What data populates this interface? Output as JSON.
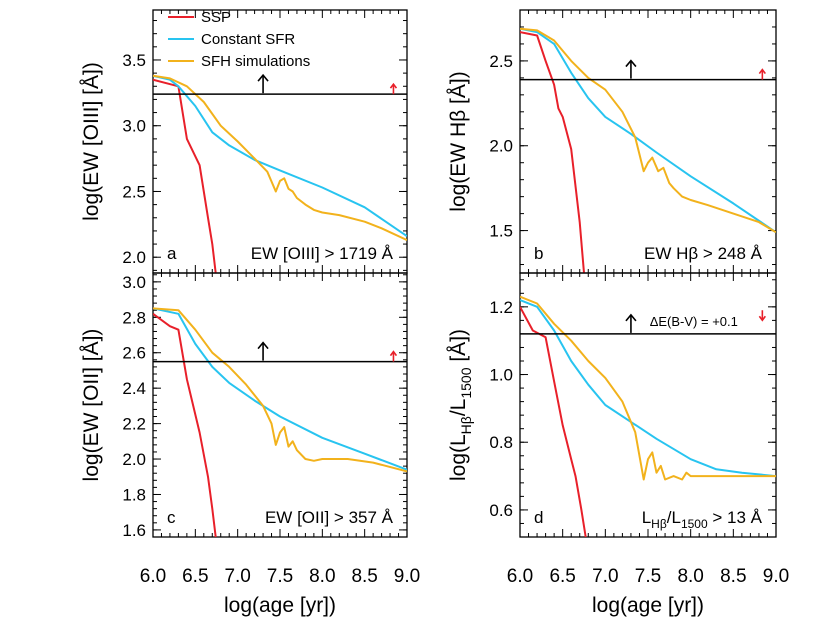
{
  "figure": {
    "legend": [
      {
        "label": "SSP",
        "color": "#e8202a"
      },
      {
        "label": "Constant SFR",
        "color": "#28c4f0"
      },
      {
        "label": "SFH simulations",
        "color": "#f2b21c"
      }
    ],
    "shared_xlabel": "log(age [yr])",
    "shared_xticks": [
      "6.0",
      "6.5",
      "7.0",
      "7.5",
      "8.0",
      "8.5",
      "9.0"
    ]
  },
  "chart_data": [
    {
      "type": "line",
      "panel_letter": "a",
      "ylabel": "log(EW [OIII] [Å])",
      "threshold_label": "EW [OIII] > 1719 Å",
      "threshold": 3.24,
      "xlim": [
        6.0,
        9.0
      ],
      "ylim": [
        1.88,
        3.88
      ],
      "yticks": [
        "2.0",
        "2.5",
        "3.0",
        "3.5"
      ],
      "ytick_values": [
        2.0,
        2.5,
        3.0,
        3.5
      ],
      "arrows": [
        {
          "x": 7.3,
          "y": 3.24,
          "dir": "up",
          "color": "#000000"
        },
        {
          "x": 8.84,
          "y": 3.24,
          "dir": "up",
          "color": "#e8202a"
        }
      ],
      "series": [
        {
          "name": "SSP",
          "color": "#e8202a",
          "x": [
            6.0,
            6.3,
            6.4,
            6.55,
            6.65,
            6.7,
            6.74
          ],
          "y": [
            3.35,
            3.3,
            2.9,
            2.7,
            2.3,
            2.1,
            1.88
          ]
        },
        {
          "name": "Constant SFR",
          "color": "#28c4f0",
          "x": [
            6.0,
            6.2,
            6.3,
            6.5,
            6.7,
            6.9,
            7.2,
            7.5,
            8.0,
            8.5,
            9.0
          ],
          "y": [
            3.38,
            3.35,
            3.3,
            3.15,
            2.95,
            2.85,
            2.74,
            2.66,
            2.53,
            2.38,
            2.16
          ]
        },
        {
          "name": "SFH simulations",
          "color": "#f2b21c",
          "x": [
            6.0,
            6.2,
            6.4,
            6.6,
            6.8,
            7.0,
            7.2,
            7.35,
            7.45,
            7.5,
            7.55,
            7.6,
            7.65,
            7.7,
            7.8,
            7.9,
            8.0,
            8.2,
            8.5,
            8.7,
            9.0
          ],
          "y": [
            3.38,
            3.36,
            3.3,
            3.18,
            3.0,
            2.88,
            2.75,
            2.65,
            2.5,
            2.58,
            2.6,
            2.52,
            2.5,
            2.45,
            2.4,
            2.36,
            2.34,
            2.32,
            2.27,
            2.22,
            2.13
          ]
        }
      ]
    },
    {
      "type": "line",
      "panel_letter": "b",
      "ylabel": "log(EW Hβ [Å])",
      "threshold_label": "EW Hβ > 248 Å",
      "threshold": 2.39,
      "xlim": [
        6.0,
        9.0
      ],
      "ylim": [
        1.25,
        2.8
      ],
      "yticks": [
        "1.5",
        "2.0",
        "2.5"
      ],
      "ytick_values": [
        1.5,
        2.0,
        2.5
      ],
      "arrows": [
        {
          "x": 7.3,
          "y": 2.39,
          "dir": "up",
          "color": "#000000"
        },
        {
          "x": 8.84,
          "y": 2.39,
          "dir": "up",
          "color": "#e8202a"
        }
      ],
      "series": [
        {
          "name": "SSP",
          "color": "#e8202a",
          "x": [
            6.0,
            6.2,
            6.3,
            6.4,
            6.45,
            6.5,
            6.6,
            6.7,
            6.75
          ],
          "y": [
            2.67,
            2.65,
            2.5,
            2.36,
            2.22,
            2.17,
            1.98,
            1.55,
            1.25
          ]
        },
        {
          "name": "Constant SFR",
          "color": "#28c4f0",
          "x": [
            6.0,
            6.2,
            6.4,
            6.6,
            6.8,
            7.0,
            7.3,
            7.6,
            8.0,
            8.5,
            9.0
          ],
          "y": [
            2.69,
            2.67,
            2.6,
            2.43,
            2.28,
            2.17,
            2.07,
            1.96,
            1.82,
            1.66,
            1.49
          ]
        },
        {
          "name": "SFH simulations",
          "color": "#f2b21c",
          "x": [
            6.0,
            6.2,
            6.4,
            6.6,
            6.8,
            7.0,
            7.2,
            7.35,
            7.45,
            7.5,
            7.55,
            7.62,
            7.68,
            7.75,
            7.8,
            7.9,
            8.0,
            8.2,
            8.5,
            8.8,
            9.0
          ],
          "y": [
            2.69,
            2.68,
            2.62,
            2.5,
            2.4,
            2.33,
            2.2,
            2.05,
            1.85,
            1.9,
            1.93,
            1.85,
            1.87,
            1.78,
            1.75,
            1.7,
            1.68,
            1.65,
            1.6,
            1.55,
            1.49
          ]
        }
      ]
    },
    {
      "type": "line",
      "panel_letter": "c",
      "ylabel": "log(EW [OII] [Å])",
      "threshold_label": "EW [OII] > 357 Å",
      "threshold": 2.55,
      "xlim": [
        6.0,
        9.0
      ],
      "ylim": [
        1.56,
        3.05
      ],
      "yticks": [
        "1.6",
        "1.8",
        "2.0",
        "2.2",
        "2.4",
        "2.6",
        "2.8",
        "3.0"
      ],
      "ytick_values": [
        1.6,
        1.8,
        2.0,
        2.2,
        2.4,
        2.6,
        2.8,
        3.0
      ],
      "arrows": [
        {
          "x": 7.3,
          "y": 2.55,
          "dir": "up",
          "color": "#000000"
        },
        {
          "x": 8.84,
          "y": 2.55,
          "dir": "up",
          "color": "#e8202a"
        }
      ],
      "series": [
        {
          "name": "SSP",
          "color": "#e8202a",
          "x": [
            6.0,
            6.2,
            6.3,
            6.4,
            6.55,
            6.65,
            6.7,
            6.74
          ],
          "y": [
            2.82,
            2.75,
            2.73,
            2.45,
            2.15,
            1.9,
            1.72,
            1.56
          ]
        },
        {
          "name": "Constant SFR",
          "color": "#28c4f0",
          "x": [
            6.0,
            6.3,
            6.5,
            6.7,
            6.9,
            7.2,
            7.5,
            8.0,
            8.5,
            9.0
          ],
          "y": [
            2.85,
            2.82,
            2.65,
            2.52,
            2.43,
            2.33,
            2.24,
            2.12,
            2.03,
            1.94
          ]
        },
        {
          "name": "SFH simulations",
          "color": "#f2b21c",
          "x": [
            6.0,
            6.3,
            6.5,
            6.7,
            6.9,
            7.1,
            7.3,
            7.4,
            7.45,
            7.5,
            7.55,
            7.6,
            7.65,
            7.7,
            7.8,
            7.9,
            8.0,
            8.3,
            8.6,
            9.0
          ],
          "y": [
            2.85,
            2.84,
            2.73,
            2.6,
            2.52,
            2.42,
            2.3,
            2.2,
            2.08,
            2.15,
            2.18,
            2.07,
            2.1,
            2.05,
            2.0,
            1.99,
            2.0,
            2.0,
            1.98,
            1.93
          ]
        }
      ]
    },
    {
      "type": "line",
      "panel_letter": "d",
      "ylabel": "log(LHβ/L1500 [Å])",
      "ylabel_parts": {
        "open": "log(L",
        "sub1": "Hβ",
        "slash": "/L",
        "sub2": "1500",
        "close": " [Å])"
      },
      "threshold_label": "LHβ/L1500 > 13 Å",
      "threshold_label_parts": {
        "l1": "L",
        "s1": "Hβ",
        "l2": "/L",
        "s2": "1500",
        "rest": " > 13 Å"
      },
      "threshold": 1.12,
      "xlim": [
        6.0,
        9.0
      ],
      "ylim": [
        0.52,
        1.3
      ],
      "yticks": [
        "0.6",
        "0.8",
        "1.0",
        "1.2"
      ],
      "ytick_values": [
        0.6,
        0.8,
        1.0,
        1.2
      ],
      "extra_annotation": {
        "text": "ΔE(B-V) = +0.1",
        "color": "#e8202a"
      },
      "arrows": [
        {
          "x": 7.3,
          "y": 1.12,
          "dir": "up",
          "color": "#000000"
        },
        {
          "x": 8.84,
          "y": 1.19,
          "dir": "down",
          "color": "#e8202a"
        }
      ],
      "series": [
        {
          "name": "SSP",
          "color": "#e8202a",
          "x": [
            6.0,
            6.15,
            6.3,
            6.4,
            6.5,
            6.6,
            6.65,
            6.72,
            6.77
          ],
          "y": [
            1.2,
            1.13,
            1.11,
            0.98,
            0.85,
            0.75,
            0.7,
            0.6,
            0.52
          ]
        },
        {
          "name": "Constant SFR",
          "color": "#28c4f0",
          "x": [
            6.0,
            6.2,
            6.4,
            6.6,
            6.8,
            7.0,
            7.3,
            7.6,
            8.0,
            8.3,
            8.6,
            9.0
          ],
          "y": [
            1.22,
            1.2,
            1.13,
            1.04,
            0.97,
            0.91,
            0.86,
            0.81,
            0.75,
            0.72,
            0.71,
            0.7
          ]
        },
        {
          "name": "SFH simulations",
          "color": "#f2b21c",
          "x": [
            6.0,
            6.2,
            6.4,
            6.6,
            6.8,
            7.0,
            7.2,
            7.35,
            7.45,
            7.5,
            7.55,
            7.6,
            7.65,
            7.7,
            7.8,
            7.9,
            7.95,
            8.0,
            8.2,
            8.5,
            9.0
          ],
          "y": [
            1.23,
            1.21,
            1.15,
            1.1,
            1.04,
            0.99,
            0.92,
            0.83,
            0.69,
            0.75,
            0.77,
            0.71,
            0.73,
            0.69,
            0.7,
            0.69,
            0.71,
            0.7,
            0.7,
            0.7,
            0.7
          ]
        }
      ]
    }
  ]
}
